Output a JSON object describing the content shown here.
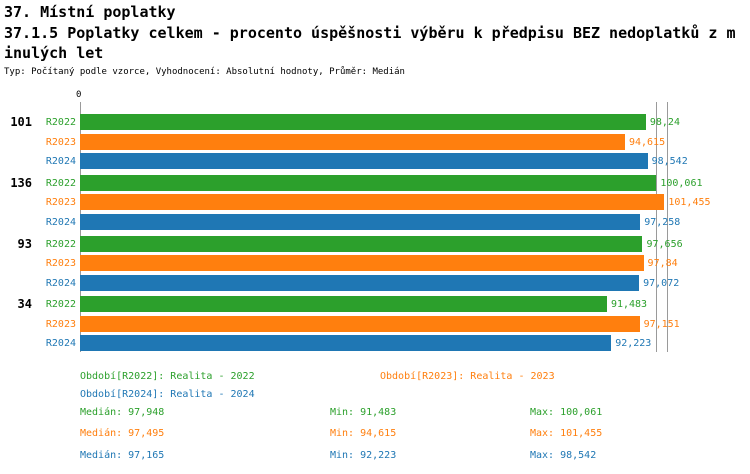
{
  "header": {
    "title": "37. Místní poplatky",
    "subtitle_line1": "37.1.5 Poplatky celkem - procento úspěšnosti výběru k předpisu BEZ nedoplatků z m",
    "subtitle_line2": "inulých let",
    "meta": "Typ: Počítaný podle vzorce, Vyhodnocení: Absolutní hodnoty, Průměr: Medián"
  },
  "chart_data": {
    "type": "bar",
    "orientation": "horizontal",
    "origin_label": "0",
    "categories": [
      "101",
      "136",
      "93",
      "34"
    ],
    "series": [
      {
        "name": "R2022",
        "color": "#2CA02C",
        "values": [
          98.24,
          100.061,
          97.656,
          91.483
        ],
        "value_labels": [
          "98,24",
          "100,061",
          "97,656",
          "91,483"
        ]
      },
      {
        "name": "R2023",
        "color": "#FF7F0E",
        "values": [
          94.615,
          101.455,
          97.84,
          97.151
        ],
        "value_labels": [
          "94,615",
          "101,455",
          "97,84",
          "97,151"
        ]
      },
      {
        "name": "R2024",
        "color": "#1F77B4",
        "values": [
          98.542,
          97.258,
          97.072,
          92.223
        ],
        "value_labels": [
          "98,542",
          "97,258",
          "97,072",
          "92,223"
        ]
      }
    ],
    "xlim": [
      0,
      101.9
    ],
    "gridlines": [
      0,
      100,
      101.9
    ],
    "grid_on": true,
    "legend_position": "bottom"
  },
  "legend": [
    {
      "text": "Období[R2022]: Realita - 2022",
      "color": "#2CA02C"
    },
    {
      "text": "Období[R2023]: Realita - 2023",
      "color": "#FF7F0E"
    },
    {
      "text": "Období[R2024]: Realita - 2024",
      "color": "#1F77B4"
    }
  ],
  "stats": [
    {
      "median": "Medián: 97,948",
      "min": "Min: 91,483",
      "max": "Max: 100,061",
      "color": "#2CA02C"
    },
    {
      "median": "Medián: 97,495",
      "min": "Min: 94,615",
      "max": "Max: 101,455",
      "color": "#FF7F0E"
    },
    {
      "median": "Medián: 97,165",
      "min": "Min: 92,223",
      "max": "Max: 98,542",
      "color": "#1F77B4"
    }
  ]
}
